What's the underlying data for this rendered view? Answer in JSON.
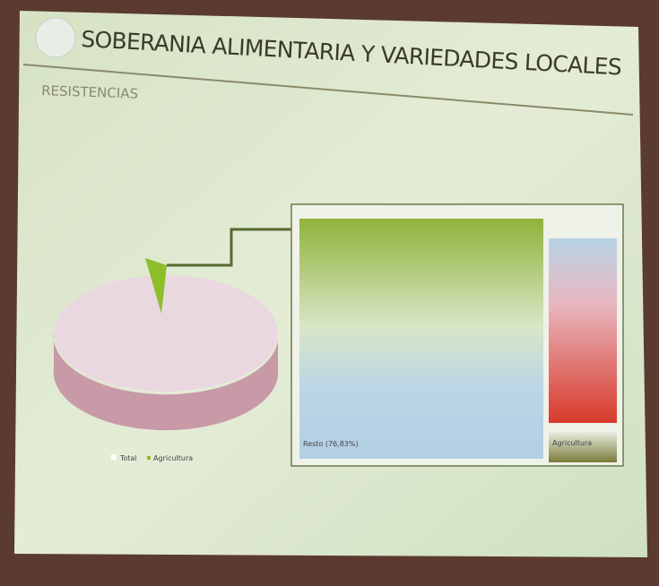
{
  "header": {
    "title": "SOBERANIA ALIMENTARIA Y VARIEDADES LOCALES",
    "subtitle": "RESISTENCIAS"
  },
  "pie": {
    "legend": [
      "Total",
      "Agricultura"
    ]
  },
  "breakdown": {
    "main_label": "Resto (76,83%)",
    "small_label": "Agricultura"
  }
}
